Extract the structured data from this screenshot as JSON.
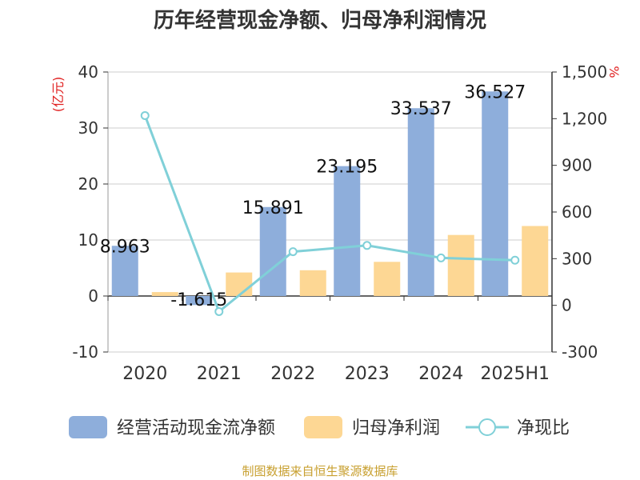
{
  "chart_data": {
    "type": "bar",
    "title": "历年经营现金净额、归母净利润情况",
    "left_axis_unit": "(亿元)",
    "right_axis_unit": "%",
    "categories": [
      "2020",
      "2021",
      "2022",
      "2023",
      "2024",
      "2025H1"
    ],
    "series": [
      {
        "name": "经营活动现金流净额",
        "type": "bar",
        "axis": "left",
        "color": "#8eaedb",
        "values": [
          8.963,
          -1.615,
          15.891,
          23.195,
          33.537,
          36.527
        ],
        "labels": [
          "8.963",
          "-1.615",
          "15.891",
          "23.195",
          "33.537",
          "36.527"
        ]
      },
      {
        "name": "归母净利润",
        "type": "bar",
        "axis": "left",
        "color": "#fdd794",
        "values": [
          0.7,
          4.2,
          4.6,
          6.1,
          10.9,
          12.5
        ]
      },
      {
        "name": "净现比",
        "type": "line",
        "axis": "right",
        "color": "#80d0d8",
        "values": [
          1220,
          -40,
          345,
          385,
          305,
          290
        ]
      }
    ],
    "left_axis": {
      "min": -10,
      "max": 40,
      "ticks": [
        "-10",
        "0",
        "10",
        "20",
        "30",
        "40"
      ],
      "values": [
        -10,
        0,
        10,
        20,
        30,
        40
      ]
    },
    "right_axis": {
      "min": -300,
      "max": 1500,
      "ticks": [
        "-300",
        "0",
        "300",
        "600",
        "900",
        "1,200",
        "1,500"
      ],
      "values": [
        -300,
        0,
        300,
        600,
        900,
        1200,
        1500
      ]
    },
    "grid": true,
    "legend": "bottom"
  },
  "source_note": "制图数据来自恒生聚源数据库"
}
